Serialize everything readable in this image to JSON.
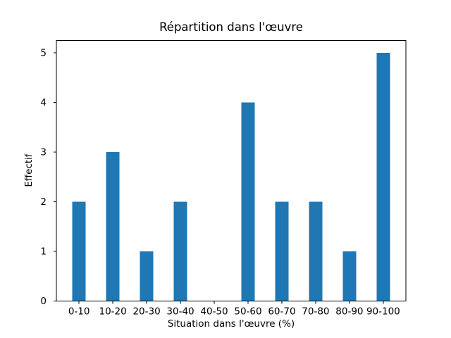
{
  "chart_data": {
    "type": "bar",
    "title": "Répartition dans l'œuvre",
    "xlabel": "Situation dans l'œuvre (%)",
    "ylabel": "Effectif",
    "categories": [
      "0-10",
      "10-20",
      "20-30",
      "30-40",
      "40-50",
      "50-60",
      "60-70",
      "70-80",
      "80-90",
      "90-100"
    ],
    "values": [
      2,
      3,
      1,
      2,
      0,
      4,
      2,
      2,
      1,
      5
    ],
    "yticks": [
      0,
      1,
      2,
      3,
      4,
      5
    ],
    "ylim": [
      0,
      5.25
    ],
    "bar_color": "#1f77b4",
    "axis_color": "#000000",
    "background_color": "#ffffff",
    "grid": false,
    "legend": false,
    "bar_width_ratio": 0.4
  }
}
